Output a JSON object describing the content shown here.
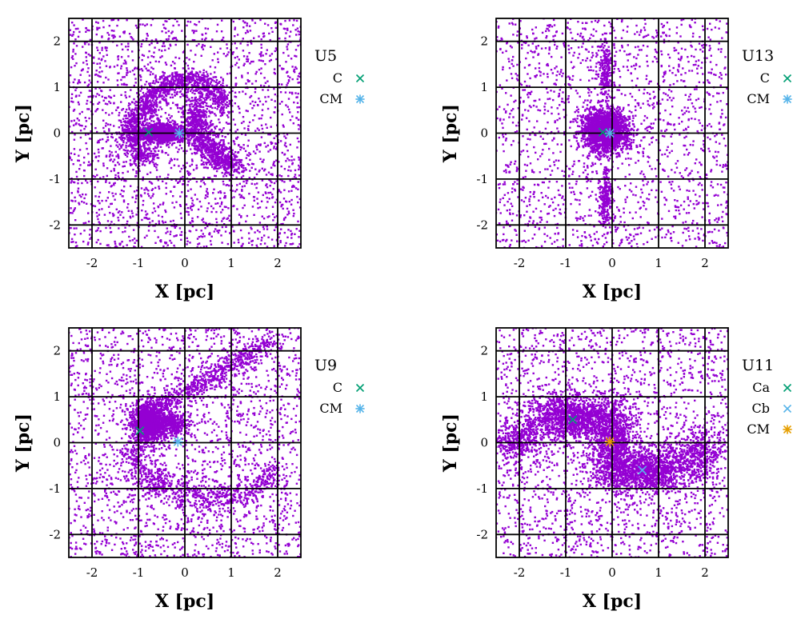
{
  "colors": {
    "points": "#9400d3",
    "marker_green": "#009e73",
    "marker_cyan": "#56b4e9",
    "marker_orange": "#e69f00",
    "grid": "#000000"
  },
  "chart_data": [
    {
      "type": "scatter",
      "title": "U5",
      "xlabel": "X [pc]",
      "ylabel": "Y [pc]",
      "xlim": [
        -2.5,
        2.5
      ],
      "ylim": [
        -2.5,
        2.5
      ],
      "xticks": [
        -2,
        -1,
        0,
        1,
        2
      ],
      "yticks": [
        -2,
        -1,
        0,
        1,
        2
      ],
      "grid": true,
      "legend_position": "right",
      "point_count_visual": "thousands of particles",
      "distribution": [
        {
          "shape": "uniform",
          "n": 2200
        },
        {
          "shape": "blob",
          "cx": -0.5,
          "cy": 0.0,
          "sx": 0.28,
          "sy": 0.1,
          "n": 1300
        },
        {
          "shape": "arc",
          "cx": 0.0,
          "cy": 0.0,
          "r": 1.0,
          "rx": 1.0,
          "ry": 1.15,
          "a0": 30,
          "a1": 150,
          "width": 0.12,
          "n": 800
        },
        {
          "shape": "arc",
          "cx": 1.3,
          "cy": 0.6,
          "r": 2.2,
          "rx": 1.1,
          "ry": 1.3,
          "a0": 180,
          "a1": 260,
          "width": 0.15,
          "n": 900
        },
        {
          "shape": "arc",
          "cx": -0.6,
          "cy": 0.0,
          "r": 0.5,
          "rx": 0.6,
          "ry": 0.55,
          "a0": 100,
          "a1": 260,
          "width": 0.12,
          "n": 500
        }
      ],
      "markers": [
        {
          "label": "C",
          "x": -0.78,
          "y": 0.02,
          "symbol": "x",
          "color": "#009e73"
        },
        {
          "label": "CM",
          "x": -0.12,
          "y": 0.0,
          "symbol": "star",
          "color": "#56b4e9"
        }
      ]
    },
    {
      "type": "scatter",
      "title": "U13",
      "xlabel": "X [pc]",
      "ylabel": "Y [pc]",
      "xlim": [
        -2.5,
        2.5
      ],
      "ylim": [
        -2.5,
        2.5
      ],
      "xticks": [
        -2,
        -1,
        0,
        1,
        2
      ],
      "yticks": [
        -2,
        -1,
        0,
        1,
        2
      ],
      "grid": true,
      "legend_position": "right",
      "distribution": [
        {
          "shape": "uniform",
          "n": 1700
        },
        {
          "shape": "blob",
          "cx": -0.15,
          "cy": 0.05,
          "sx": 0.25,
          "sy": 0.22,
          "n": 2000
        },
        {
          "shape": "blob",
          "cx": -0.15,
          "cy": -1.4,
          "sx": 0.07,
          "sy": 0.35,
          "n": 250
        },
        {
          "shape": "blob",
          "cx": -0.15,
          "cy": 1.4,
          "sx": 0.08,
          "sy": 0.3,
          "n": 200
        }
      ],
      "markers": [
        {
          "label": "C",
          "x": -0.2,
          "y": 0.02,
          "symbol": "x",
          "color": "#009e73"
        },
        {
          "label": "CM",
          "x": -0.05,
          "y": 0.0,
          "symbol": "star",
          "color": "#56b4e9"
        }
      ]
    },
    {
      "type": "scatter",
      "title": "U9",
      "xlabel": "X [pc]",
      "ylabel": "Y [pc]",
      "xlim": [
        -2.5,
        2.5
      ],
      "ylim": [
        -2.5,
        2.5
      ],
      "xticks": [
        -2,
        -1,
        0,
        1,
        2
      ],
      "yticks": [
        -2,
        -1,
        0,
        1,
        2
      ],
      "grid": true,
      "legend_position": "right",
      "distribution": [
        {
          "shape": "uniform",
          "n": 2100
        },
        {
          "shape": "blob",
          "cx": -0.78,
          "cy": 0.42,
          "sx": 0.17,
          "sy": 0.22,
          "n": 1400
        },
        {
          "shape": "line",
          "x0": -0.8,
          "y0": 0.6,
          "x1": 1.8,
          "y1": 2.2,
          "width": 0.12,
          "n": 600
        },
        {
          "shape": "arc",
          "cx": 0.6,
          "cy": 0.4,
          "r": 1.9,
          "rx": 1.9,
          "ry": 1.6,
          "a0": 200,
          "a1": 320,
          "width": 0.15,
          "n": 700
        },
        {
          "shape": "blob",
          "cx": -0.3,
          "cy": 0.4,
          "sx": 0.18,
          "sy": 0.12,
          "n": 400
        }
      ],
      "markers": [
        {
          "label": "C",
          "x": -0.97,
          "y": 0.26,
          "symbol": "x",
          "color": "#009e73"
        },
        {
          "label": "CM",
          "x": -0.15,
          "y": 0.02,
          "symbol": "star",
          "color": "#56b4e9"
        }
      ]
    },
    {
      "type": "scatter",
      "title": "U11",
      "xlabel": "X [pc]",
      "ylabel": "Y [pc]",
      "xlim": [
        -2.5,
        2.5
      ],
      "ylim": [
        -2.5,
        2.5
      ],
      "xticks": [
        -2,
        -1,
        0,
        1,
        2
      ],
      "yticks": [
        -2,
        -1,
        0,
        1,
        2
      ],
      "grid": true,
      "legend_position": "right",
      "distribution": [
        {
          "shape": "uniform",
          "n": 1900
        },
        {
          "shape": "blob",
          "cx": -0.85,
          "cy": 0.55,
          "sx": 0.5,
          "sy": 0.25,
          "n": 1300
        },
        {
          "shape": "blob",
          "cx": 0.75,
          "cy": -0.6,
          "sx": 0.55,
          "sy": 0.25,
          "n": 1300
        },
        {
          "shape": "blob",
          "cx": 0.0,
          "cy": 0.0,
          "sx": 0.25,
          "sy": 0.45,
          "n": 900
        },
        {
          "shape": "blob",
          "cx": -2.0,
          "cy": 0.05,
          "sx": 0.3,
          "sy": 0.25,
          "n": 400
        },
        {
          "shape": "blob",
          "cx": 1.9,
          "cy": -0.2,
          "sx": 0.3,
          "sy": 0.25,
          "n": 400
        }
      ],
      "markers": [
        {
          "label": "Ca",
          "x": -0.85,
          "y": 0.5,
          "symbol": "x",
          "color": "#009e73"
        },
        {
          "label": "Cb",
          "x": 0.65,
          "y": -0.6,
          "symbol": "x",
          "color": "#56b4e9"
        },
        {
          "label": "CM",
          "x": -0.05,
          "y": 0.02,
          "symbol": "star",
          "color": "#e69f00"
        }
      ]
    }
  ]
}
